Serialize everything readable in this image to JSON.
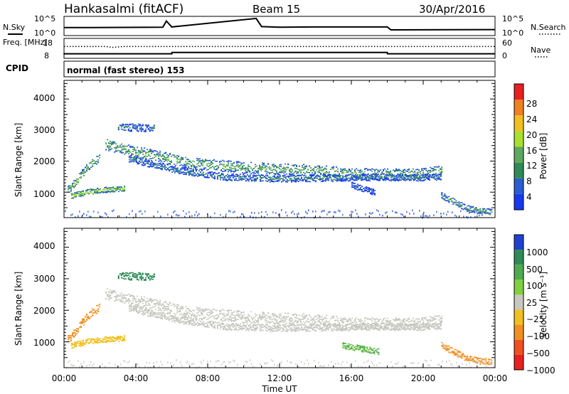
{
  "header": {
    "title": "Hankasalmi (fitACF)",
    "beam": "Beam 15",
    "date": "30/Apr/2016"
  },
  "chart_data": [
    {
      "type": "line",
      "panel": "noise",
      "left_label": "N.Sky",
      "left_ticks": [
        "10^5",
        "10^0"
      ],
      "right_label": "N.Search",
      "right_ticks": [
        "10^5",
        "10^0"
      ],
      "x": [
        0,
        0.5,
        5.5,
        5.7,
        6,
        10.7,
        11,
        12,
        14,
        18,
        18.2,
        24
      ],
      "series": [
        {
          "values": [
            2.0,
            2.0,
            2.1,
            4.0,
            2.2,
            4.8,
            2.3,
            2.1,
            2.2,
            2.2,
            1.3,
            1.4
          ]
        }
      ]
    },
    {
      "type": "line",
      "panel": "frequency",
      "left_label": "Freq. [MHz]",
      "left_ticks": [
        "18",
        "8"
      ],
      "right_label": "Nave",
      "right_ticks": [
        "60",
        "0"
      ],
      "freq_x": [
        0,
        0.01,
        6,
        6.01,
        18,
        18.01,
        24
      ],
      "freq_mhz": [
        9.4,
        9.9,
        9.9,
        10.7,
        10.7,
        9.9,
        9.9
      ],
      "nave_x": [
        0,
        2.3,
        2.7,
        3.3,
        24
      ],
      "nave": [
        38,
        38,
        35,
        38,
        38
      ]
    },
    {
      "type": "table",
      "panel": "cpid",
      "label": "CPID",
      "text": "normal (fast stereo) 153"
    },
    {
      "type": "heatmap",
      "panel": "power",
      "ylabel": "Slant Range [km]",
      "yticks": [
        "1000",
        "2000",
        "3000",
        "4000"
      ],
      "ylim": [
        180,
        4600
      ],
      "colorbar_label": "Power [dB]",
      "colorbar_ticks": [
        "4",
        "8",
        "12",
        "16",
        "20",
        "24",
        "28"
      ],
      "colorbar_range": [
        0,
        32
      ],
      "colors": [
        "#1838f0",
        "#2a5dd0",
        "#2e8b57",
        "#5fa85f",
        "#a8e030",
        "#f0c020",
        "#f08020",
        "#e82020"
      ],
      "bands": [
        {
          "x": [
            2.3,
            4.5,
            7.0,
            10.0,
            12.5,
            14.5,
            15.5,
            17.5,
            20.0,
            21.0
          ],
          "y": [
            2550,
            2250,
            1950,
            1800,
            1750,
            1700,
            1620,
            1580,
            1600,
            1700
          ],
          "width": 230,
          "peak_db": 14
        },
        {
          "x": [
            3.6,
            6.0,
            9.0,
            12.0,
            14.5,
            16.0,
            17.5,
            19.5,
            21.0
          ],
          "y": [
            2100,
            1750,
            1500,
            1450,
            1470,
            1480,
            1500,
            1480,
            1520
          ],
          "width": 140,
          "peak_db": 9
        },
        {
          "x": [
            0.2,
            0.6,
            1.1,
            1.6,
            2.0
          ],
          "y": [
            1100,
            1300,
            1700,
            2000,
            2100
          ],
          "width": 160,
          "peak_db": 16
        },
        {
          "x": [
            0.4,
            1.0,
            1.6,
            2.4,
            3.4
          ],
          "y": [
            900,
            980,
            1050,
            1100,
            1130
          ],
          "width": 110,
          "peak_db": 18
        },
        {
          "x": [
            3.0,
            3.5,
            4.3,
            5.0
          ],
          "y": [
            3120,
            3100,
            3090,
            3080
          ],
          "width": 150,
          "peak_db": 9
        },
        {
          "x": [
            16.0,
            16.5,
            17.3
          ],
          "y": [
            1250,
            1150,
            1000
          ],
          "width": 120,
          "peak_db": 6
        },
        {
          "x": [
            21.0,
            21.7,
            22.4,
            23.0,
            23.8
          ],
          "y": [
            900,
            700,
            500,
            420,
            380
          ],
          "width": 130,
          "peak_db": 12
        }
      ],
      "near_range": [
        180,
        450
      ]
    },
    {
      "type": "heatmap",
      "panel": "velocity",
      "ylabel": "Slant Range [km]",
      "yticks": [
        "1000",
        "2000",
        "3000",
        "4000"
      ],
      "ylim": [
        180,
        4600
      ],
      "xlabel": "Time UT",
      "xticks": [
        "00:00",
        "04:00",
        "08:00",
        "12:00",
        "16:00",
        "20:00",
        "00:00"
      ],
      "xlim": [
        0,
        24
      ],
      "colorbar_label": "Velocity [m s⁻¹]",
      "colorbar_ticks": [
        "1000",
        "500",
        "100",
        "25",
        "−25",
        "−100",
        "−500",
        "−1000"
      ],
      "colors": [
        "#2040d0",
        "#2e8b57",
        "#4faa50",
        "#80d040",
        "#c8c8c0",
        "#f0c020",
        "#f09020",
        "#f05020",
        "#e82020"
      ],
      "bands": [
        {
          "x": [
            2.3,
            4.5,
            7.0,
            10.0,
            12.5,
            14.5,
            15.5,
            17.5,
            20.0,
            21.0
          ],
          "y": [
            2550,
            2250,
            1950,
            1800,
            1750,
            1700,
            1620,
            1580,
            1600,
            1700
          ],
          "width": 230,
          "velocity": 0
        },
        {
          "x": [
            3.6,
            6.0,
            9.0,
            12.0,
            14.5,
            16.0,
            17.5,
            19.5,
            21.0
          ],
          "y": [
            2100,
            1750,
            1500,
            1450,
            1470,
            1480,
            1500,
            1480,
            1520
          ],
          "width": 140,
          "velocity": 0
        },
        {
          "x": [
            0.2,
            0.6,
            1.1,
            1.6,
            2.0
          ],
          "y": [
            1100,
            1300,
            1700,
            2000,
            2100
          ],
          "width": 160,
          "velocity": -300
        },
        {
          "x": [
            0.4,
            1.0,
            1.6,
            2.4,
            3.4
          ],
          "y": [
            900,
            980,
            1050,
            1100,
            1130
          ],
          "width": 110,
          "velocity": -60
        },
        {
          "x": [
            3.0,
            3.5,
            4.3,
            5.0
          ],
          "y": [
            3120,
            3100,
            3090,
            3080
          ],
          "width": 150,
          "velocity": 200
        },
        {
          "x": [
            15.5,
            16.5,
            17.5
          ],
          "y": [
            900,
            800,
            700
          ],
          "width": 120,
          "velocity": 60
        },
        {
          "x": [
            21.0,
            21.7,
            22.4,
            23.0,
            23.8
          ],
          "y": [
            900,
            700,
            500,
            420,
            380
          ],
          "width": 130,
          "velocity": -200
        }
      ]
    }
  ]
}
